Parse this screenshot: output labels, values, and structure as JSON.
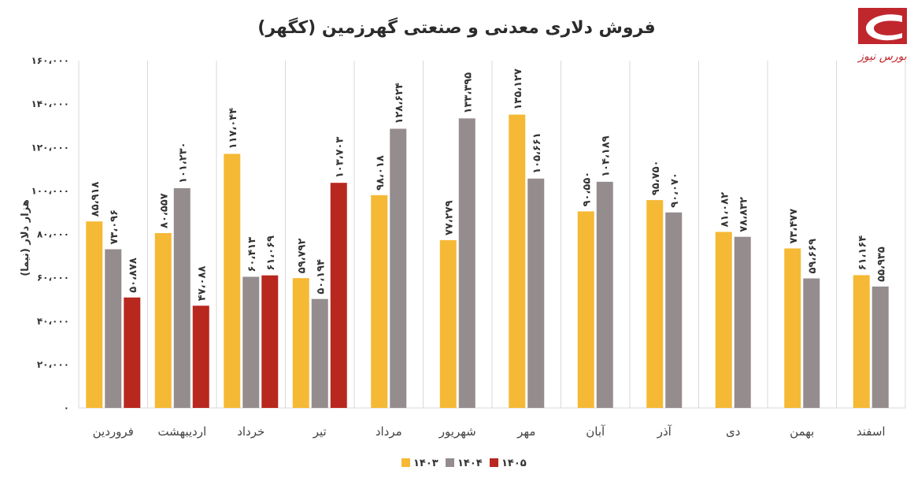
{
  "logo": {
    "text": "بورس نیوز",
    "color": "#c0272d"
  },
  "chart_data": {
    "type": "bar",
    "title": "فروش دلاری معدنی و صنعتی گهرزمین (کگهر)",
    "ylabel": "هزار دلار (نیما)",
    "ylim": [
      0,
      160000
    ],
    "yticks": [
      {
        "value": 0,
        "label": "۰"
      },
      {
        "value": 20000,
        "label": "۲۰،۰۰۰"
      },
      {
        "value": 40000,
        "label": "۴۰،۰۰۰"
      },
      {
        "value": 60000,
        "label": "۶۰،۰۰۰"
      },
      {
        "value": 80000,
        "label": "۸۰،۰۰۰"
      },
      {
        "value": 100000,
        "label": "۱۰۰،۰۰۰"
      },
      {
        "value": 120000,
        "label": "۱۲۰،۰۰۰"
      },
      {
        "value": 140000,
        "label": "۱۴۰،۰۰۰"
      },
      {
        "value": 160000,
        "label": "۱۶۰،۰۰۰"
      }
    ],
    "categories": [
      "فروردین",
      "اردیبهشت",
      "خرداد",
      "تیر",
      "مرداد",
      "شهریور",
      "مهر",
      "آبان",
      "آذر",
      "دی",
      "بهمن",
      "اسفند"
    ],
    "series": [
      {
        "name": "۱۴۰۳",
        "color": "#f5b935",
        "values": [
          85918,
          80557,
          117044,
          59792,
          98018,
          77279,
          135127,
          90550,
          95750,
          81082,
          73477,
          61164
        ],
        "labels": [
          "۸۵،۹۱۸",
          "۸۰،۵۵۷",
          "۱۱۷،۰۴۴",
          "۵۹،۷۹۲",
          "۹۸،۰۱۸",
          "۷۷،۲۷۹",
          "۱۳۵،۱۲۷",
          "۹۰،۵۵۰",
          "۹۵،۷۵۰",
          "۸۱،۰۸۲",
          "۷۳،۴۷۷",
          "۶۱،۱۶۴"
        ]
      },
      {
        "name": "۱۴۰۴",
        "color": "#958c8e",
        "values": [
          73096,
          101230,
          60413,
          50194,
          128624,
          133395,
          105661,
          104189,
          90070,
          78832,
          59669,
          55935
        ],
        "labels": [
          "۷۳،۰۹۶",
          "۱۰۱،۲۳۰",
          "۶۰،۴۱۳",
          "۵۰،۱۹۴",
          "۱۲۸،۶۲۴",
          "۱۳۳،۳۹۵",
          "۱۰۵،۶۶۱",
          "۱۰۴،۱۸۹",
          "۹۰،۰۷۰",
          "۷۸،۸۳۲",
          "۵۹،۶۶۹",
          "۵۵،۹۳۵"
        ]
      },
      {
        "name": "۱۴۰۵",
        "color": "#b8281f",
        "values": [
          50878,
          47088,
          61069,
          103703,
          null,
          null,
          null,
          null,
          null,
          null,
          null,
          null
        ],
        "labels": [
          "۵۰،۸۷۸",
          "۴۷،۰۸۸",
          "۶۱،۰۶۹",
          "۱۰۳،۷۰۳",
          "",
          "",
          "",
          "",
          "",
          "",
          "",
          ""
        ]
      }
    ],
    "grid": "vertical-separators",
    "legend_position": "bottom-center"
  }
}
